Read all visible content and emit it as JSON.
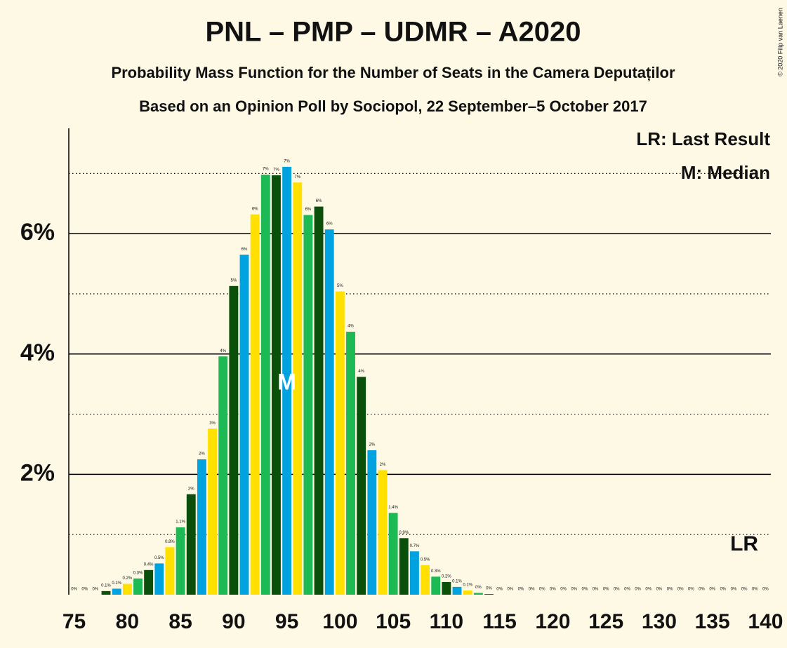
{
  "chart_data": {
    "type": "bar",
    "title": "PNL – PMP – UDMR – A2020",
    "subtitle": "Probability Mass Function for the Number of Seats in the Camera Deputaților",
    "subtitle2": "Based on an Opinion Poll by Sociopol, 22 September–5 October 2017",
    "copyright": "© 2020 Filip van Laenen",
    "legend": [
      "LR: Last Result",
      "M: Median"
    ],
    "x": [
      75,
      76,
      77,
      78,
      79,
      80,
      81,
      82,
      83,
      84,
      85,
      86,
      87,
      88,
      89,
      90,
      91,
      92,
      93,
      94,
      95,
      96,
      97,
      98,
      99,
      100,
      101,
      102,
      103,
      104,
      105,
      106,
      107,
      108,
      109,
      110,
      111,
      112,
      113,
      114,
      115,
      116,
      117,
      118,
      119,
      120,
      121,
      122,
      123,
      124,
      125,
      126,
      127,
      128,
      129,
      130,
      131,
      132,
      133,
      134,
      135,
      136,
      137,
      138,
      139,
      140
    ],
    "values": [
      0,
      0,
      0,
      0.06,
      0.1,
      0.18,
      0.27,
      0.41,
      0.52,
      0.79,
      1.12,
      1.67,
      2.25,
      2.76,
      3.96,
      5.13,
      5.65,
      6.32,
      6.98,
      6.97,
      7.11,
      6.85,
      6.31,
      6.45,
      6.07,
      5.04,
      4.37,
      3.62,
      2.4,
      2.07,
      1.36,
      0.94,
      0.72,
      0.49,
      0.3,
      0.21,
      0.13,
      0.07,
      0.03,
      0.01,
      0,
      0,
      0,
      0,
      0,
      0,
      0,
      0,
      0,
      0,
      0,
      0,
      0,
      0,
      0,
      0,
      0,
      0,
      0,
      0,
      0,
      0,
      0,
      0,
      0,
      0
    ],
    "value_labels": [
      "0%",
      "0%",
      "0%",
      "0.1%",
      "0.1%",
      "0.2%",
      "0.3%",
      "0.4%",
      "0.5%",
      "0.8%",
      "1.1%",
      "2%",
      "2%",
      "3%",
      "4%",
      "5%",
      "6%",
      "6%",
      "7%",
      "7%",
      "7%",
      "7%",
      "6%",
      "6%",
      "6%",
      "5%",
      "4%",
      "4%",
      "2%",
      "2%",
      "1.4%",
      "0.9%",
      "0.7%",
      "0.5%",
      "0.3%",
      "0.2%",
      "0.1%",
      "0.1%",
      "0%",
      "0%",
      "0%",
      "0%",
      "0%",
      "0%",
      "0%",
      "0%",
      "0%",
      "0%",
      "0%",
      "0%",
      "0%",
      "0%",
      "0%",
      "0%",
      "0%",
      "0%",
      "0%",
      "0%",
      "0%",
      "0%",
      "0%",
      "0%",
      "0%",
      "0%",
      "0%",
      "0%"
    ],
    "palette": [
      "#00a3e0",
      "#ffe000",
      "#1db954",
      "#0a4f0a"
    ],
    "xlim": [
      74.5,
      140.5
    ],
    "xticks": [
      75,
      80,
      85,
      90,
      95,
      100,
      105,
      110,
      115,
      120,
      125,
      130,
      135,
      140
    ],
    "ylim": [
      0,
      7.75
    ],
    "yticks": [
      {
        "value": 2,
        "label": "2%"
      },
      {
        "value": 4,
        "label": "4%"
      },
      {
        "value": 6,
        "label": "6%"
      }
    ],
    "minor_gridlines": [
      1,
      3,
      5,
      7
    ],
    "median": {
      "x": 95,
      "label": "M"
    },
    "last_result": {
      "x": 138,
      "label": "LR"
    }
  }
}
